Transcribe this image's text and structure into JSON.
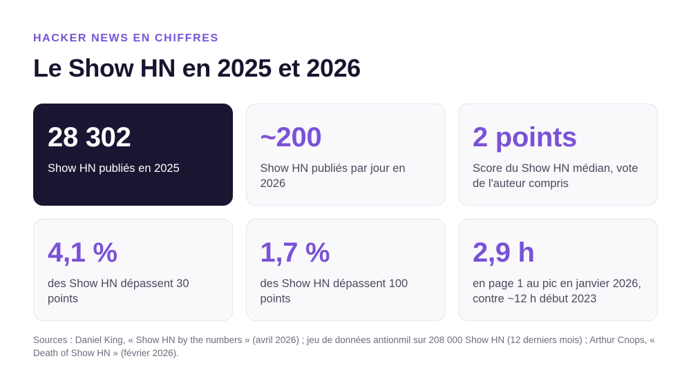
{
  "header": {
    "kicker": "HACKER NEWS EN CHIFFRES",
    "title": "Le Show HN en 2025 et 2026"
  },
  "stats": [
    {
      "value": "28 302",
      "label": "Show HN publiés en 2025",
      "featured": true
    },
    {
      "value": "~200",
      "label": "Show HN publiés par jour en 2026",
      "featured": false
    },
    {
      "value": "2 points",
      "label": "Score du Show HN médian, vote de l'auteur compris",
      "featured": false
    },
    {
      "value": "4,1 %",
      "label": "des Show HN dépassent 30 points",
      "featured": false
    },
    {
      "value": "1,7 %",
      "label": "des Show HN dépassent 100 points",
      "featured": false
    },
    {
      "value": "2,9 h",
      "label": "en page 1 au pic en janvier 2026, contre ~12 h début 2023",
      "featured": false
    }
  ],
  "footer": {
    "sources": "Sources : Daniel King, « Show HN by the numbers » (avril 2026) ; jeu de données antionmil sur 208 000 Show HN (12 derniers mois) ; Arthur Cnops, « Death of Show HN » (février 2026)."
  },
  "colors": {
    "accent": "#7a52d6",
    "featured_bg": "#181631",
    "card_bg": "#f9f9fc",
    "card_border": "#e6e4ee",
    "title": "#17152e"
  }
}
